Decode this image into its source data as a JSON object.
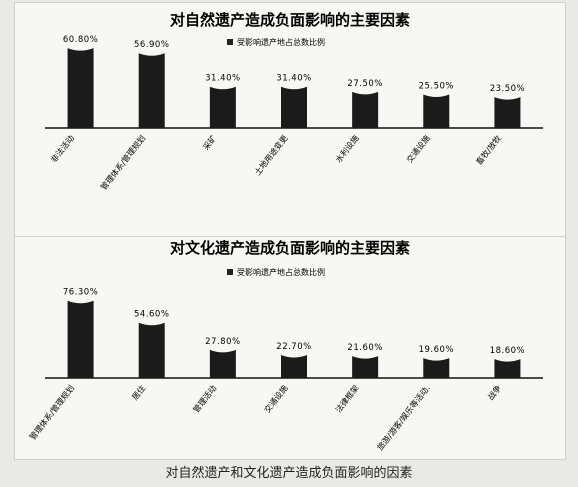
{
  "chart_data": [
    {
      "type": "bar",
      "title": "对自然遗产造成负面影响的主要因素",
      "legend": "受影响遗产地占总数比例",
      "legend_position": "top",
      "categories": [
        "非法活动",
        "管理体系/管理规划",
        "采矿",
        "土地用途变更",
        "水利设施",
        "交通设施",
        "畜牧/放牧"
      ],
      "values": [
        60.8,
        56.9,
        31.4,
        31.4,
        27.5,
        25.5,
        23.5
      ],
      "value_labels": [
        "60.80%",
        "56.90%",
        "31.40%",
        "31.40%",
        "27.50%",
        "25.50%",
        "23.50%"
      ],
      "ylim": [
        0,
        70
      ],
      "grid": false
    },
    {
      "type": "bar",
      "title": "对文化遗产造成负面影响的主要因素",
      "legend": "受影响遗产地占总数比例",
      "legend_position": "top",
      "categories": [
        "管理体系/管理规划",
        "居住",
        "管理活动",
        "交通设施",
        "法律框架",
        "旅游/游客/娱乐等活动.",
        "战争"
      ],
      "values": [
        76.3,
        54.6,
        27.8,
        22.7,
        21.6,
        19.6,
        18.6
      ],
      "value_labels": [
        "76.30%",
        "54.60%",
        "27.80%",
        "22.70%",
        "21.60%",
        "19.60%",
        "18.60%"
      ],
      "ylim": [
        0,
        80
      ],
      "grid": false
    }
  ],
  "caption": "对自然遗产和文化遗产造成负面影响的因素"
}
